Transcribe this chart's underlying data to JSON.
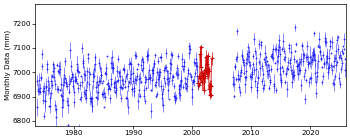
{
  "ylabel": "Monthly Data (mm)",
  "xlim": [
    1973.5,
    2026
  ],
  "ylim": [
    6780,
    7280
  ],
  "yticks": [
    6800,
    6900,
    7000,
    7100,
    7200
  ],
  "xticks": [
    1980,
    1990,
    2000,
    2010,
    2020
  ],
  "blue_color": "#1a1aff",
  "red_color": "#cc0000",
  "gap_start": 2003.3,
  "gap_end": 2006.8,
  "red_start": 2001.0,
  "red_end": 2003.3,
  "trend_slope": 2.2,
  "base_level": 6940,
  "base_year": 1975,
  "noise_std": 38,
  "seasonal_amp": 55,
  "seasonal_phase": 0.25,
  "yerr_mean": 18,
  "yerr_std": 10,
  "seed": 17,
  "start_year": 1973.7,
  "end_year": 2025.9,
  "month_step": 0.08333333
}
